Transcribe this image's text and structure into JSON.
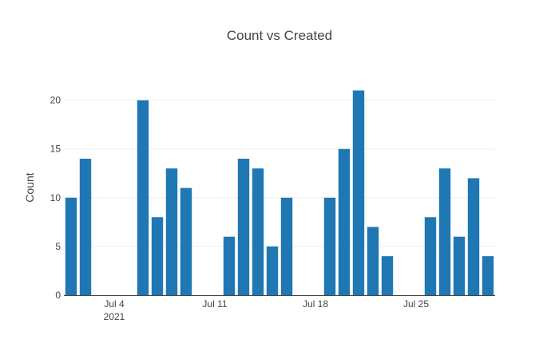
{
  "chart_data": {
    "type": "bar",
    "title": "Count vs Created",
    "xlabel": "",
    "ylabel": "Count",
    "x": [
      "2021-07-01",
      "2021-07-02",
      "2021-07-03",
      "2021-07-04",
      "2021-07-05",
      "2021-07-06",
      "2021-07-07",
      "2021-07-08",
      "2021-07-09",
      "2021-07-10",
      "2021-07-11",
      "2021-07-12",
      "2021-07-13",
      "2021-07-14",
      "2021-07-15",
      "2021-07-16",
      "2021-07-17",
      "2021-07-18",
      "2021-07-19",
      "2021-07-20",
      "2021-07-21",
      "2021-07-22",
      "2021-07-23",
      "2021-07-24",
      "2021-07-25",
      "2021-07-26",
      "2021-07-27",
      "2021-07-28",
      "2021-07-29",
      "2021-07-30",
      "2021-07-31"
    ],
    "values": [
      10,
      14,
      0,
      0,
      0,
      20,
      8,
      13,
      11,
      0,
      0,
      6,
      14,
      13,
      5,
      10,
      0,
      0,
      10,
      15,
      21,
      7,
      4,
      0,
      0,
      8,
      13,
      6,
      12,
      4,
      0
    ],
    "xlim": [
      "2021-07-01",
      "2021-07-30"
    ],
    "ylim": [
      0,
      22.1
    ],
    "yticks": [
      0,
      5,
      10,
      15,
      20
    ],
    "xticks": [
      {
        "date": "2021-07-04",
        "label": "Jul 4",
        "sublabel": "2021"
      },
      {
        "date": "2021-07-11",
        "label": "Jul 11",
        "sublabel": ""
      },
      {
        "date": "2021-07-18",
        "label": "Jul 18",
        "sublabel": ""
      },
      {
        "date": "2021-07-25",
        "label": "Jul 25",
        "sublabel": ""
      }
    ],
    "grid": true,
    "color": "#1f77b4"
  }
}
